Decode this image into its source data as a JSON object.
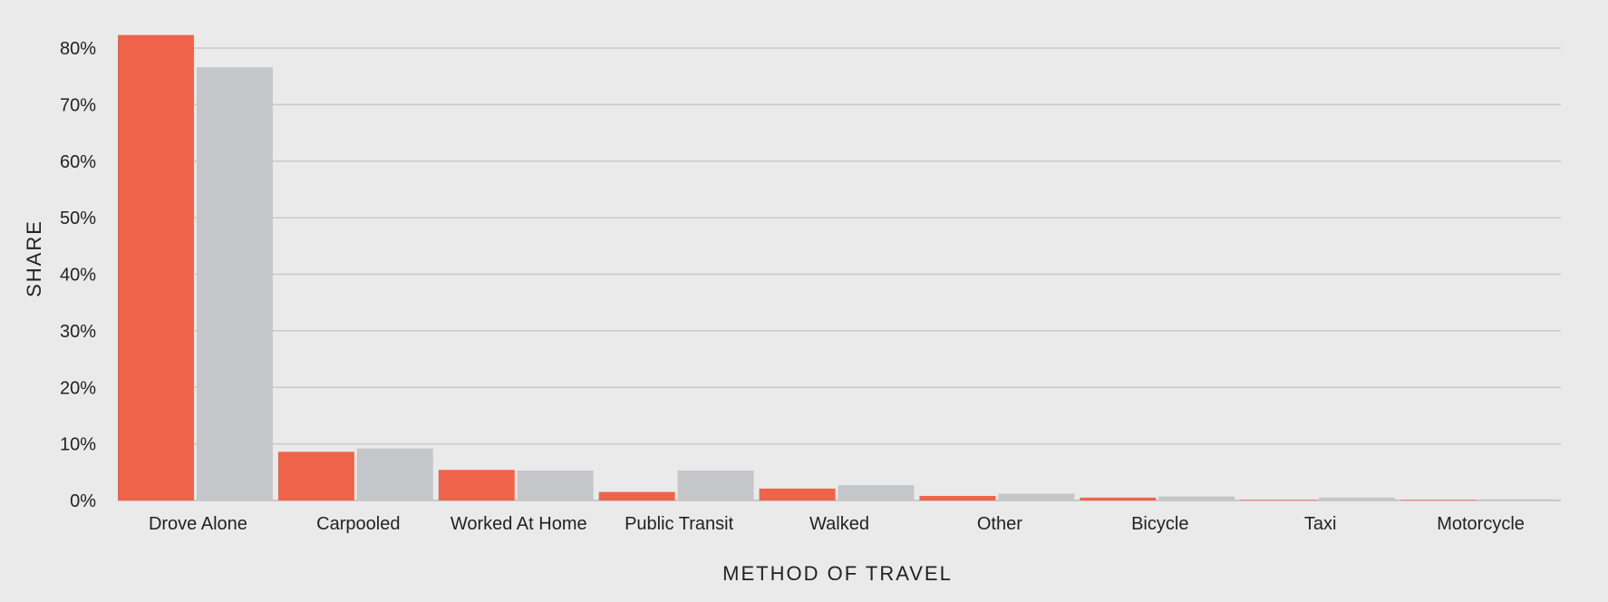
{
  "chart_data": {
    "type": "bar",
    "categories": [
      "Drove Alone",
      "Carpooled",
      "Worked At Home",
      "Public Transit",
      "Walked",
      "Other",
      "Bicycle",
      "Taxi",
      "Motorcycle"
    ],
    "series": [
      {
        "color": "#ef634a",
        "values": [
          82.3,
          8.6,
          5.4,
          1.5,
          2.1,
          0.8,
          0.5,
          0.1,
          0.1
        ]
      },
      {
        "color": "#c5c6ca",
        "values": [
          76.6,
          9.2,
          5.3,
          5.3,
          2.7,
          1.2,
          0.7,
          0.5,
          0.2
        ]
      }
    ],
    "xlabel": "METHOD OF TRAVEL",
    "ylabel": "SHARE",
    "ylim": [
      0,
      80
    ],
    "yticks": [
      "0%",
      "10%",
      "20%",
      "30%",
      "40%",
      "50%",
      "60%",
      "70%",
      "80%"
    ],
    "ytick_values": [
      0,
      10,
      20,
      30,
      40,
      50,
      60,
      70,
      80
    ],
    "grid": true,
    "legend": "none",
    "colors": {
      "background": "#eaeaea",
      "grid": "#c9c9c9",
      "axis": "#bdbdbd"
    }
  }
}
